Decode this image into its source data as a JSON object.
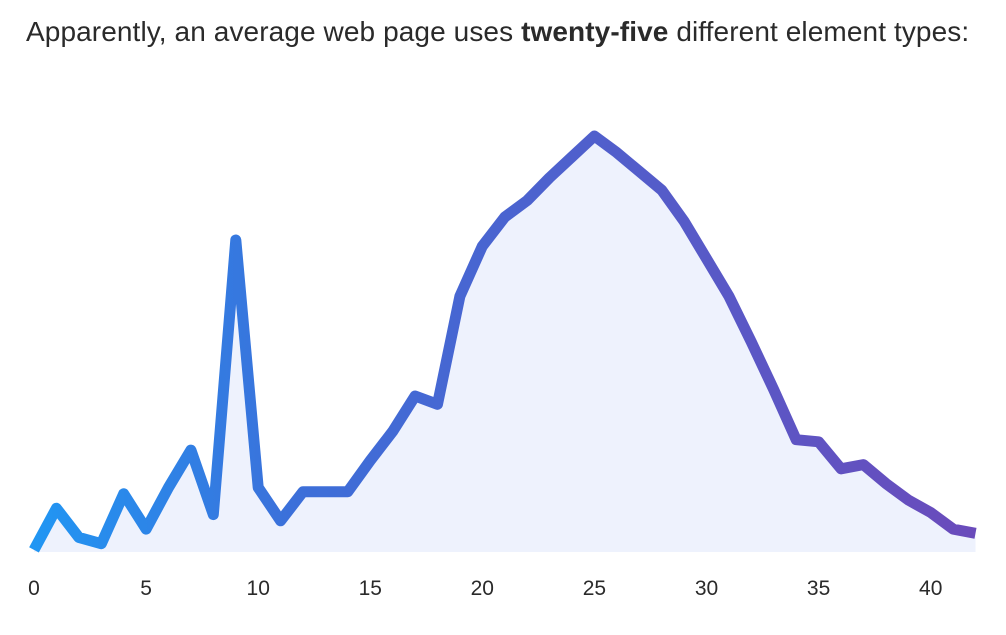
{
  "headline": {
    "prefix": "Apparently, an average web page uses ",
    "emphasis": "twenty-five",
    "suffix": " different element types:"
  },
  "colors": {
    "line_start": "#2196f3",
    "line_mid": "#3c6fd9",
    "line_end": "#6a4bbb",
    "area_fill": "#eef2fd",
    "text": "#2a2a2a"
  },
  "chart_data": {
    "type": "area",
    "title": "",
    "xlabel": "",
    "ylabel": "",
    "xlim": [
      0,
      42
    ],
    "ylim": [
      0,
      100
    ],
    "x_ticks": [
      0,
      5,
      10,
      15,
      20,
      25,
      30,
      35,
      40
    ],
    "y_axis_shown": false,
    "grid": false,
    "legend": "none",
    "x": [
      0,
      1,
      2,
      3,
      4,
      5,
      6,
      7,
      8,
      9,
      10,
      11,
      12,
      13,
      14,
      15,
      16,
      17,
      18,
      19,
      20,
      21,
      22,
      23,
      24,
      25,
      26,
      27,
      28,
      29,
      30,
      31,
      32,
      33,
      34,
      35,
      36,
      37,
      38,
      39,
      40,
      41,
      42
    ],
    "values": [
      0.5,
      10.5,
      3.5,
      2,
      14,
      5.5,
      15.5,
      24.5,
      9,
      75,
      15.5,
      7.5,
      14.5,
      14.5,
      14.5,
      22,
      29,
      37.5,
      35.5,
      61.5,
      73.5,
      80.5,
      84.5,
      90,
      95,
      100,
      96,
      91.5,
      87,
      79.5,
      70.5,
      61.5,
      50.5,
      39,
      27,
      26.5,
      20,
      21,
      16.5,
      12.5,
      9.5,
      5.5,
      4.5
    ]
  }
}
